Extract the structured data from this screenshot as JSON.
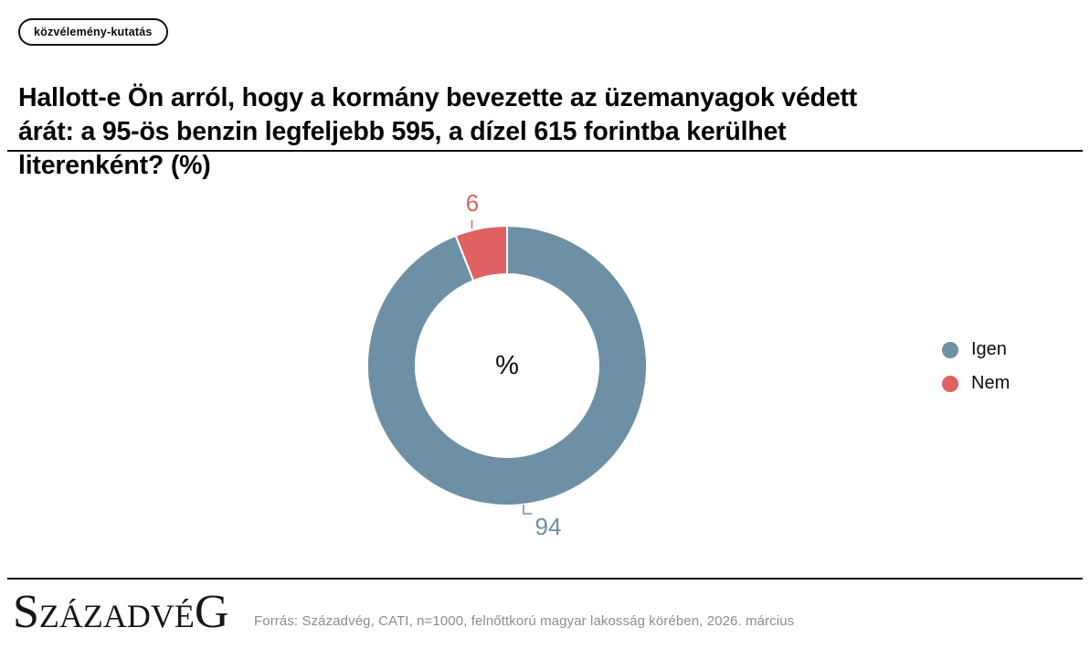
{
  "badge": {
    "label": "közvélemény-kutatás"
  },
  "title": "Hallott-e Ön arról, hogy a kormány bevezette az üzemanyagok védett árát: a 95-ös benzin legfeljebb 595, a dízel 615 forintba kerülhet literenként? (%)",
  "chart_data": {
    "type": "pie",
    "subtype": "donut",
    "title": "Hallott-e Ön arról, hogy a kormány bevezette az üzemanyagok védett árát: a 95-ös benzin legfeljebb 595, a dízel 615 forintba kerülhet literenként? (%)",
    "unit": "%",
    "center_label": "%",
    "categories": [
      "Igen",
      "Nem"
    ],
    "values": [
      94,
      6
    ],
    "colors": [
      "#6d90a4",
      "#e06161"
    ],
    "legend_position": "right",
    "start_angle_deg": 0,
    "direction": "clockwise"
  },
  "legend": {
    "items": [
      {
        "label": "Igen"
      },
      {
        "label": "Nem"
      }
    ]
  },
  "footer": {
    "logo_parts": [
      "S",
      "ZÁZADVÉ",
      "G"
    ],
    "source": "Forrás: Századvég, CATI, n=1000, felnőttkorú magyar lakosság körében, 2026. március"
  }
}
